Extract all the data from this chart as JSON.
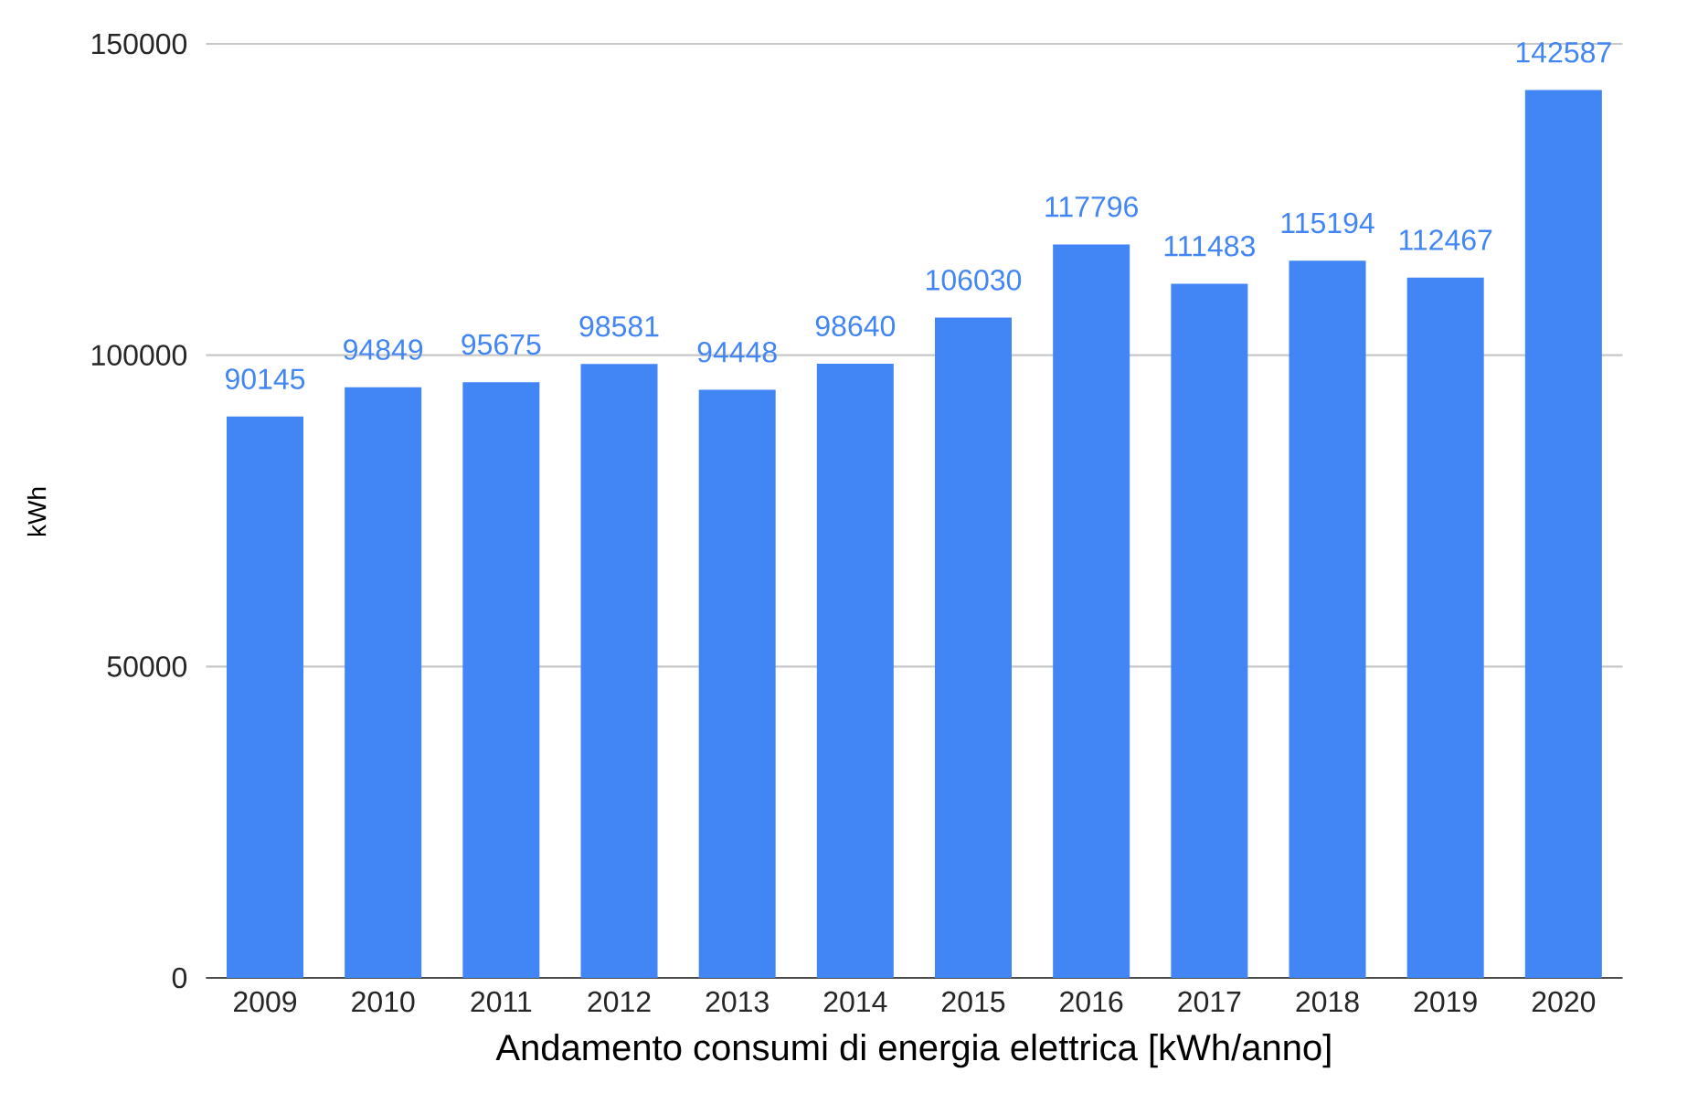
{
  "chart_data": {
    "type": "bar",
    "xlabel": "Andamento consumi di energia elettrica [kWh/anno]",
    "ylabel": "kWh",
    "categories": [
      "2009",
      "2010",
      "2011",
      "2012",
      "2013",
      "2014",
      "2015",
      "2016",
      "2017",
      "2018",
      "2019",
      "2020"
    ],
    "values": [
      90145,
      94849,
      95675,
      98581,
      94448,
      98640,
      106030,
      117796,
      111483,
      115194,
      112467,
      142587
    ],
    "color": "#4285f4",
    "ylim": [
      0,
      150000
    ],
    "yticks": [
      0,
      50000,
      100000,
      150000
    ],
    "grid": "y",
    "data_labels": true
  }
}
